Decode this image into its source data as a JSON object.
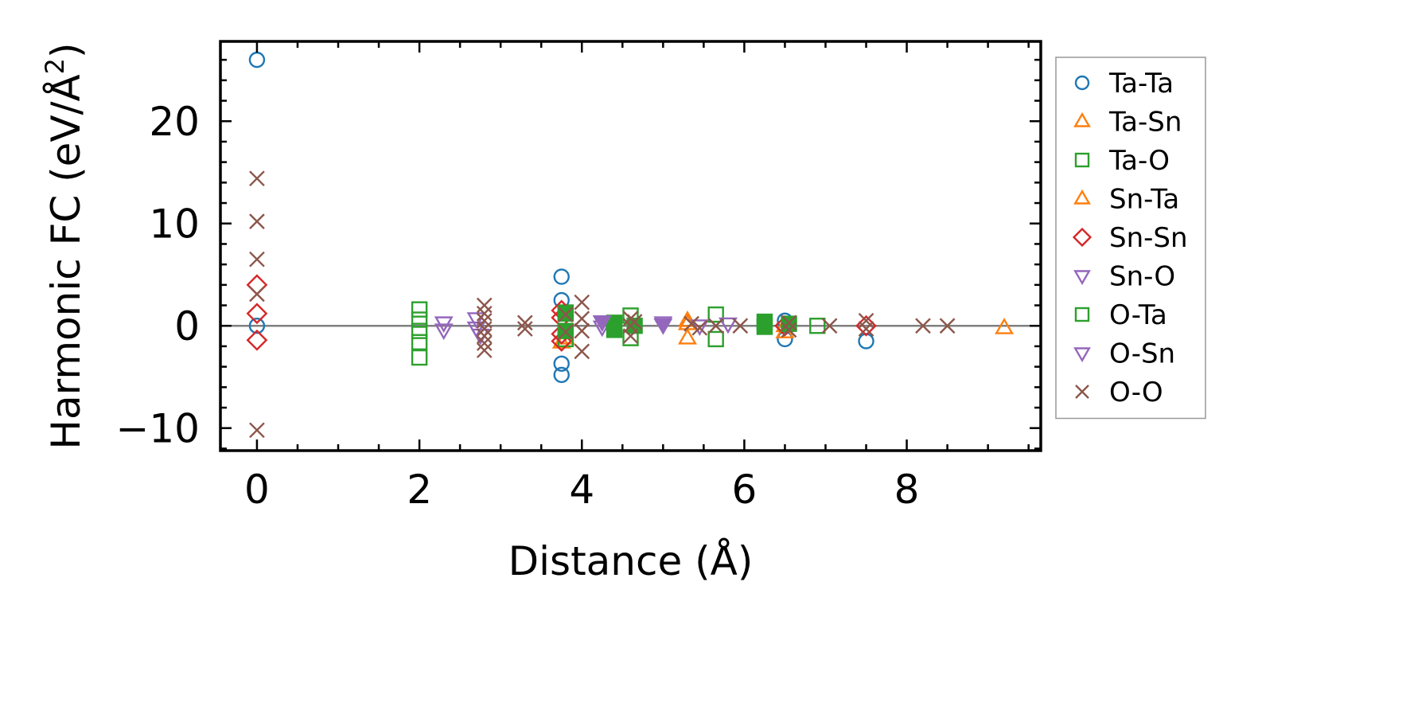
{
  "chart_data": {
    "type": "scatter",
    "xlabel": "Distance (Å)",
    "ylabel_main": "Harmonic FC (eV/Å",
    "ylabel_sup": "2",
    "ylabel_close": ")",
    "xlim": [
      -0.45,
      9.65
    ],
    "ylim": [
      -12.2,
      27.8
    ],
    "xticks": [
      0,
      2,
      4,
      6,
      8
    ],
    "xtick_labels": [
      "0",
      "2",
      "4",
      "6",
      "8"
    ],
    "yticks": [
      -10,
      0,
      10,
      20
    ],
    "ytick_labels": [
      "−10",
      "0",
      "10",
      "20"
    ],
    "zero_line": true,
    "legend_position": "outside-right",
    "series": [
      {
        "name": "Ta-Ta",
        "marker": "circle",
        "filled": false,
        "color": "#1f77b4",
        "points": [
          [
            0,
            26
          ],
          [
            0,
            0
          ],
          [
            3.75,
            4.8
          ],
          [
            3.75,
            2.5
          ],
          [
            3.75,
            -3.7
          ],
          [
            3.75,
            -4.8
          ],
          [
            6.5,
            0.5
          ],
          [
            6.5,
            -1.3
          ],
          [
            7.5,
            -1.5
          ]
        ]
      },
      {
        "name": "Ta-Sn",
        "marker": "triangle-up",
        "filled": false,
        "color": "#ff7f0e",
        "points": [
          [
            3.75,
            -1.6
          ],
          [
            3.8,
            -1.2
          ],
          [
            5.3,
            0.5
          ],
          [
            5.3,
            -1.2
          ],
          [
            6.5,
            0
          ],
          [
            9.2,
            -0.2
          ]
        ]
      },
      {
        "name": "Ta-O",
        "marker": "square",
        "filled": false,
        "color": "#2ca02c",
        "points": [
          [
            2,
            1.6
          ],
          [
            2,
            0.6
          ],
          [
            2,
            -0.5
          ],
          [
            2,
            -1.6
          ],
          [
            2,
            -3.1
          ],
          [
            3.8,
            1.3
          ],
          [
            3.8,
            -1.3
          ],
          [
            4.6,
            1
          ],
          [
            4.6,
            -1.2
          ],
          [
            5.65,
            1.1
          ],
          [
            5.65,
            -1.3
          ],
          [
            6.9,
            0
          ]
        ]
      },
      {
        "name": "Sn-Ta",
        "marker": "triangle-up",
        "filled": false,
        "color": "#ff7f0e",
        "points": [
          [
            5.3,
            0.2
          ],
          [
            6.5,
            -0.6
          ]
        ]
      },
      {
        "name": "Sn-Sn",
        "marker": "diamond",
        "filled": false,
        "color": "#d62728",
        "points": [
          [
            0,
            4
          ],
          [
            0,
            1.2
          ],
          [
            0,
            -1.4
          ],
          [
            3.75,
            1.5
          ],
          [
            3.75,
            0.8
          ],
          [
            3.75,
            -0.8
          ],
          [
            3.75,
            -1.5
          ],
          [
            6.5,
            0
          ],
          [
            7.5,
            0
          ]
        ]
      },
      {
        "name": "Sn-O",
        "marker": "triangle-down",
        "filled": false,
        "color": "#9467bd",
        "points": [
          [
            2.3,
            0.3
          ],
          [
            2.3,
            -0.4
          ],
          [
            2.7,
            0.7
          ],
          [
            2.7,
            -0.2
          ],
          [
            2.75,
            -0.9
          ],
          [
            4.25,
            0.4
          ],
          [
            4.25,
            -0.1
          ],
          [
            5,
            0.3
          ],
          [
            5.45,
            0
          ],
          [
            5.8,
            0.2
          ]
        ]
      },
      {
        "name": "O-Ta",
        "marker": "square",
        "filled": true,
        "color": "#2ca02c",
        "points": [
          [
            3.8,
            1.2
          ],
          [
            3.8,
            -0.5
          ],
          [
            4.4,
            0.3
          ],
          [
            4.4,
            -0.4
          ],
          [
            4.65,
            0
          ],
          [
            6.25,
            0.4
          ],
          [
            6.25,
            -0.1
          ],
          [
            6.55,
            0.2
          ]
        ]
      },
      {
        "name": "O-Sn",
        "marker": "triangle-down",
        "filled": true,
        "color": "#9467bd",
        "points": [
          [
            4.25,
            0.4
          ],
          [
            5.0,
            0.1
          ]
        ]
      },
      {
        "name": "O-O",
        "marker": "x",
        "filled": false,
        "color": "#8c564b",
        "points": [
          [
            0,
            14.4
          ],
          [
            0,
            10.2
          ],
          [
            0,
            6.5
          ],
          [
            0,
            3.1
          ],
          [
            0,
            -10.2
          ],
          [
            2.8,
            2
          ],
          [
            2.8,
            1.2
          ],
          [
            2.8,
            0.5
          ],
          [
            2.8,
            -0.3
          ],
          [
            2.8,
            -1
          ],
          [
            2.8,
            -1.7
          ],
          [
            2.8,
            -2.4
          ],
          [
            3.3,
            0.3
          ],
          [
            3.3,
            -0.3
          ],
          [
            3.8,
            1.1
          ],
          [
            3.8,
            -0.6
          ],
          [
            4,
            2.3
          ],
          [
            4,
            0.7
          ],
          [
            4,
            -0.5
          ],
          [
            4,
            -2.5
          ],
          [
            4.6,
            0.7
          ],
          [
            4.6,
            0
          ],
          [
            4.6,
            -1
          ],
          [
            4.65,
            0.4
          ],
          [
            5.35,
            0.2
          ],
          [
            5.45,
            -0.2
          ],
          [
            5.65,
            0
          ],
          [
            5.95,
            0
          ],
          [
            6.55,
            0.3
          ],
          [
            6.55,
            -0.4
          ],
          [
            7.05,
            0
          ],
          [
            7.5,
            0.5
          ],
          [
            7.5,
            -0.3
          ],
          [
            8.2,
            0
          ],
          [
            8.5,
            0
          ]
        ]
      }
    ]
  }
}
